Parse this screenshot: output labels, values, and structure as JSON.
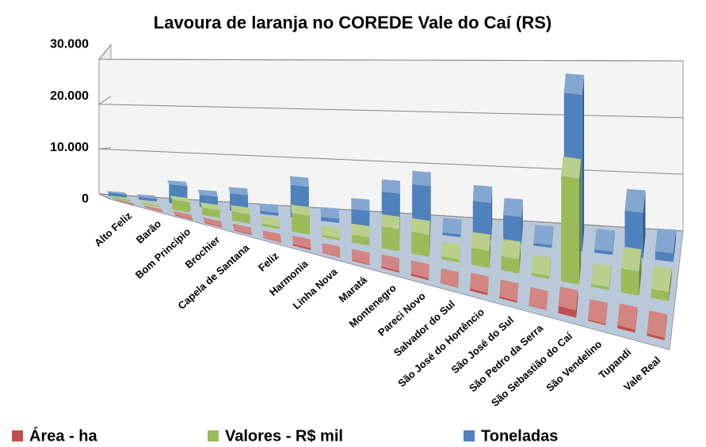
{
  "chart_data": {
    "type": "bar3d",
    "title": "Lavoura de laranja no COREDE Vale do Caí (RS)",
    "categories": [
      "Alto Feliz",
      "Barão",
      "Bom Princípio",
      "Brochier",
      "Capela de Santana",
      "Feliz",
      "Harmonia",
      "Linha Nova",
      "Maratá",
      "Montenegro",
      "Pareci Novo",
      "Salvador do Sul",
      "São José do Hortêncio",
      "São José do Sul",
      "São Pedro da Serra",
      "São Sebastião do Caí",
      "São Vendelino",
      "Tupandi",
      "Vale Real"
    ],
    "series": [
      {
        "name": "Área - ha",
        "color": "#c0504d",
        "values": [
          50,
          40,
          150,
          150,
          150,
          80,
          300,
          80,
          150,
          300,
          350,
          80,
          400,
          300,
          80,
          1200,
          200,
          500,
          400
        ]
      },
      {
        "name": "Valores - R$ mil",
        "color": "#9bbb59",
        "values": [
          300,
          200,
          2000,
          1500,
          1800,
          500,
          3500,
          400,
          1500,
          4000,
          4000,
          500,
          3000,
          2500,
          500,
          18000,
          500,
          4000,
          1500
        ]
      },
      {
        "name": "Toneladas",
        "color": "#4f81bd",
        "values": [
          800,
          600,
          4000,
          2500,
          3500,
          600,
          6500,
          800,
          3000,
          7000,
          9000,
          500,
          7000,
          5000,
          500,
          28000,
          600,
          8000,
          1500
        ]
      }
    ],
    "ylim": [
      0,
      30000
    ],
    "yticks": [
      0,
      {
        "value": 10000,
        "label": "10.000"
      },
      {
        "value": 20000,
        "label": "20.000"
      },
      {
        "value": 30000,
        "label": "30.000"
      }
    ],
    "grid": true,
    "legend": "bottom"
  }
}
